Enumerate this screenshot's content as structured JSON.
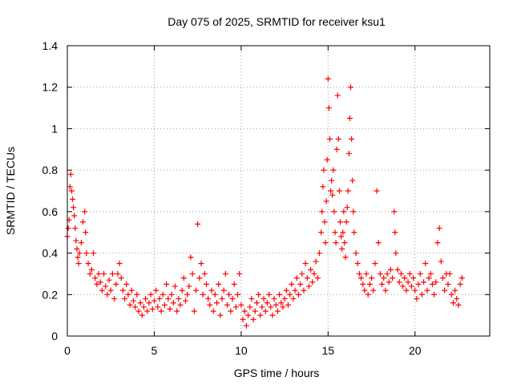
{
  "chart_data": {
    "type": "scatter",
    "title": "Day 075 of 2025, SRMTID for receiver ksu1",
    "xlabel": "GPS time / hours",
    "ylabel": "SRMTID / TECUs",
    "xlim": [
      0,
      24.3
    ],
    "ylim": [
      0,
      1.4
    ],
    "x_ticks": [
      0,
      5,
      10,
      15,
      20
    ],
    "x_tick_labels": [
      "0",
      "5",
      "10",
      "15",
      "20"
    ],
    "y_ticks": [
      0,
      0.2,
      0.4,
      0.6,
      0.8,
      1.0,
      1.2,
      1.4
    ],
    "y_tick_labels": [
      "0",
      "0.2",
      "0.4",
      "0.6",
      "0.8",
      "1",
      "1.2",
      "1.4"
    ],
    "grid": true,
    "marker": "plus",
    "series": [
      {
        "name": "SRMTID",
        "color": "#ff0000",
        "points": [
          [
            0.0,
            0.48
          ],
          [
            0.05,
            0.52
          ],
          [
            0.1,
            0.56
          ],
          [
            0.15,
            0.72
          ],
          [
            0.2,
            0.78
          ],
          [
            0.25,
            0.7
          ],
          [
            0.3,
            0.66
          ],
          [
            0.35,
            0.62
          ],
          [
            0.4,
            0.58
          ],
          [
            0.45,
            0.52
          ],
          [
            0.5,
            0.46
          ],
          [
            0.55,
            0.42
          ],
          [
            0.6,
            0.38
          ],
          [
            0.65,
            0.35
          ],
          [
            0.7,
            0.4
          ],
          [
            0.8,
            0.45
          ],
          [
            0.9,
            0.55
          ],
          [
            1.0,
            0.6
          ],
          [
            1.05,
            0.5
          ],
          [
            1.1,
            0.4
          ],
          [
            1.2,
            0.35
          ],
          [
            1.3,
            0.3
          ],
          [
            1.4,
            0.32
          ],
          [
            1.5,
            0.4
          ],
          [
            1.6,
            0.28
          ],
          [
            1.7,
            0.25
          ],
          [
            1.8,
            0.3
          ],
          [
            1.9,
            0.26
          ],
          [
            2.0,
            0.22
          ],
          [
            2.1,
            0.3
          ],
          [
            2.2,
            0.24
          ],
          [
            2.3,
            0.2
          ],
          [
            2.4,
            0.27
          ],
          [
            2.5,
            0.22
          ],
          [
            2.6,
            0.3
          ],
          [
            2.7,
            0.18
          ],
          [
            2.8,
            0.25
          ],
          [
            2.9,
            0.3
          ],
          [
            3.0,
            0.35
          ],
          [
            3.1,
            0.28
          ],
          [
            3.2,
            0.22
          ],
          [
            3.3,
            0.18
          ],
          [
            3.4,
            0.25
          ],
          [
            3.5,
            0.2
          ],
          [
            3.6,
            0.15
          ],
          [
            3.7,
            0.22
          ],
          [
            3.8,
            0.17
          ],
          [
            3.9,
            0.14
          ],
          [
            4.0,
            0.2
          ],
          [
            4.1,
            0.12
          ],
          [
            4.2,
            0.16
          ],
          [
            4.3,
            0.1
          ],
          [
            4.4,
            0.14
          ],
          [
            4.5,
            0.18
          ],
          [
            4.6,
            0.12
          ],
          [
            4.7,
            0.16
          ],
          [
            4.8,
            0.2
          ],
          [
            4.9,
            0.13
          ],
          [
            5.0,
            0.17
          ],
          [
            5.1,
            0.22
          ],
          [
            5.2,
            0.14
          ],
          [
            5.3,
            0.18
          ],
          [
            5.4,
            0.12
          ],
          [
            5.5,
            0.2
          ],
          [
            5.6,
            0.15
          ],
          [
            5.7,
            0.25
          ],
          [
            5.8,
            0.18
          ],
          [
            5.9,
            0.13
          ],
          [
            6.0,
            0.2
          ],
          [
            6.1,
            0.16
          ],
          [
            6.2,
            0.24
          ],
          [
            6.3,
            0.12
          ],
          [
            6.4,
            0.18
          ],
          [
            6.5,
            0.15
          ],
          [
            6.6,
            0.22
          ],
          [
            6.7,
            0.28
          ],
          [
            6.8,
            0.17
          ],
          [
            6.9,
            0.2
          ],
          [
            7.0,
            0.24
          ],
          [
            7.1,
            0.38
          ],
          [
            7.2,
            0.3
          ],
          [
            7.3,
            0.12
          ],
          [
            7.4,
            0.22
          ],
          [
            7.5,
            0.54
          ],
          [
            7.6,
            0.28
          ],
          [
            7.7,
            0.35
          ],
          [
            7.8,
            0.2
          ],
          [
            7.9,
            0.3
          ],
          [
            8.0,
            0.25
          ],
          [
            8.1,
            0.18
          ],
          [
            8.2,
            0.15
          ],
          [
            8.3,
            0.22
          ],
          [
            8.4,
            0.12
          ],
          [
            8.5,
            0.2
          ],
          [
            8.6,
            0.16
          ],
          [
            8.7,
            0.25
          ],
          [
            8.8,
            0.1
          ],
          [
            8.9,
            0.18
          ],
          [
            9.0,
            0.22
          ],
          [
            9.1,
            0.3
          ],
          [
            9.2,
            0.15
          ],
          [
            9.3,
            0.2
          ],
          [
            9.4,
            0.12
          ],
          [
            9.5,
            0.18
          ],
          [
            9.6,
            0.25
          ],
          [
            9.7,
            0.14
          ],
          [
            9.8,
            0.2
          ],
          [
            9.9,
            0.3
          ],
          [
            10.0,
            0.15
          ],
          [
            10.1,
            0.08
          ],
          [
            10.2,
            0.12
          ],
          [
            10.3,
            0.05
          ],
          [
            10.4,
            0.1
          ],
          [
            10.5,
            0.14
          ],
          [
            10.6,
            0.18
          ],
          [
            10.7,
            0.08
          ],
          [
            10.8,
            0.12
          ],
          [
            10.9,
            0.16
          ],
          [
            11.0,
            0.2
          ],
          [
            11.1,
            0.1
          ],
          [
            11.2,
            0.14
          ],
          [
            11.3,
            0.18
          ],
          [
            11.4,
            0.12
          ],
          [
            11.5,
            0.16
          ],
          [
            11.6,
            0.2
          ],
          [
            11.7,
            0.14
          ],
          [
            11.8,
            0.1
          ],
          [
            11.9,
            0.18
          ],
          [
            12.0,
            0.15
          ],
          [
            12.1,
            0.12
          ],
          [
            12.2,
            0.2
          ],
          [
            12.3,
            0.16
          ],
          [
            12.4,
            0.14
          ],
          [
            12.5,
            0.18
          ],
          [
            12.6,
            0.22
          ],
          [
            12.7,
            0.15
          ],
          [
            12.8,
            0.2
          ],
          [
            12.9,
            0.25
          ],
          [
            13.0,
            0.18
          ],
          [
            13.1,
            0.22
          ],
          [
            13.2,
            0.28
          ],
          [
            13.3,
            0.2
          ],
          [
            13.4,
            0.25
          ],
          [
            13.5,
            0.3
          ],
          [
            13.6,
            0.22
          ],
          [
            13.7,
            0.35
          ],
          [
            13.8,
            0.28
          ],
          [
            13.9,
            0.24
          ],
          [
            14.0,
            0.32
          ],
          [
            14.1,
            0.26
          ],
          [
            14.2,
            0.3
          ],
          [
            14.3,
            0.36
          ],
          [
            14.4,
            0.28
          ],
          [
            14.5,
            0.4
          ],
          [
            14.6,
            0.5
          ],
          [
            14.65,
            0.6
          ],
          [
            14.7,
            0.72
          ],
          [
            14.75,
            0.8
          ],
          [
            14.8,
            0.55
          ],
          [
            14.85,
            0.45
          ],
          [
            14.9,
            0.65
          ],
          [
            14.95,
            0.85
          ],
          [
            15.0,
            1.24
          ],
          [
            15.05,
            1.1
          ],
          [
            15.1,
            0.95
          ],
          [
            15.15,
            0.7
          ],
          [
            15.2,
            0.75
          ],
          [
            15.25,
            0.68
          ],
          [
            15.3,
            0.8
          ],
          [
            15.35,
            0.6
          ],
          [
            15.4,
            0.5
          ],
          [
            15.45,
            0.45
          ],
          [
            15.5,
            0.9
          ],
          [
            15.55,
            1.16
          ],
          [
            15.6,
            0.95
          ],
          [
            15.65,
            0.7
          ],
          [
            15.7,
            0.55
          ],
          [
            15.75,
            0.48
          ],
          [
            15.8,
            0.42
          ],
          [
            15.85,
            0.5
          ],
          [
            15.9,
            0.6
          ],
          [
            15.95,
            0.45
          ],
          [
            16.0,
            0.38
          ],
          [
            16.05,
            0.55
          ],
          [
            16.1,
            0.62
          ],
          [
            16.15,
            0.7
          ],
          [
            16.2,
            0.88
          ],
          [
            16.25,
            1.05
          ],
          [
            16.3,
            1.2
          ],
          [
            16.35,
            0.95
          ],
          [
            16.4,
            0.75
          ],
          [
            16.45,
            0.6
          ],
          [
            16.5,
            0.5
          ],
          [
            16.6,
            0.4
          ],
          [
            16.7,
            0.35
          ],
          [
            16.8,
            0.3
          ],
          [
            16.9,
            0.28
          ],
          [
            17.0,
            0.25
          ],
          [
            17.1,
            0.22
          ],
          [
            17.2,
            0.3
          ],
          [
            17.3,
            0.2
          ],
          [
            17.4,
            0.25
          ],
          [
            17.5,
            0.28
          ],
          [
            17.6,
            0.22
          ],
          [
            17.7,
            0.35
          ],
          [
            17.8,
            0.7
          ],
          [
            17.9,
            0.45
          ],
          [
            18.0,
            0.3
          ],
          [
            18.1,
            0.25
          ],
          [
            18.2,
            0.28
          ],
          [
            18.3,
            0.22
          ],
          [
            18.4,
            0.3
          ],
          [
            18.5,
            0.26
          ],
          [
            18.6,
            0.32
          ],
          [
            18.7,
            0.28
          ],
          [
            18.8,
            0.6
          ],
          [
            18.85,
            0.5
          ],
          [
            18.9,
            0.4
          ],
          [
            19.0,
            0.32
          ],
          [
            19.1,
            0.26
          ],
          [
            19.2,
            0.3
          ],
          [
            19.3,
            0.24
          ],
          [
            19.4,
            0.28
          ],
          [
            19.5,
            0.22
          ],
          [
            19.6,
            0.26
          ],
          [
            19.7,
            0.3
          ],
          [
            19.8,
            0.24
          ],
          [
            19.9,
            0.28
          ],
          [
            20.0,
            0.22
          ],
          [
            20.1,
            0.18
          ],
          [
            20.2,
            0.25
          ],
          [
            20.3,
            0.3
          ],
          [
            20.4,
            0.2
          ],
          [
            20.5,
            0.26
          ],
          [
            20.6,
            0.35
          ],
          [
            20.7,
            0.22
          ],
          [
            20.8,
            0.28
          ],
          [
            20.9,
            0.3
          ],
          [
            21.0,
            0.25
          ],
          [
            21.1,
            0.2
          ],
          [
            21.2,
            0.26
          ],
          [
            21.3,
            0.45
          ],
          [
            21.4,
            0.52
          ],
          [
            21.5,
            0.36
          ],
          [
            21.6,
            0.28
          ],
          [
            21.7,
            0.22
          ],
          [
            21.8,
            0.3
          ],
          [
            21.9,
            0.25
          ],
          [
            22.0,
            0.3
          ],
          [
            22.1,
            0.2
          ],
          [
            22.2,
            0.16
          ],
          [
            22.3,
            0.22
          ],
          [
            22.4,
            0.18
          ],
          [
            22.5,
            0.15
          ],
          [
            22.6,
            0.25
          ],
          [
            22.7,
            0.28
          ]
        ]
      }
    ]
  }
}
